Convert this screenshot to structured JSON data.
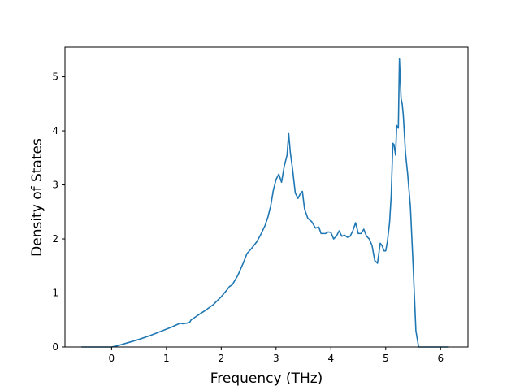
{
  "chart_data": {
    "type": "line",
    "title": "",
    "xlabel": "Frequency (THz)",
    "ylabel": "Density of States",
    "xlim": [
      -0.85,
      6.5
    ],
    "ylim": [
      0,
      5.55
    ],
    "grid": false,
    "legend": "none",
    "x_ticks": [
      0,
      1,
      2,
      3,
      4,
      5,
      6
    ],
    "y_ticks": [
      0,
      1,
      2,
      3,
      4,
      5
    ],
    "series": [
      {
        "color": "#1f77b4",
        "x": [
          -0.55,
          -0.3,
          0.0,
          0.1,
          0.3,
          0.5,
          0.7,
          0.9,
          1.1,
          1.25,
          1.3,
          1.42,
          1.45,
          1.55,
          1.7,
          1.85,
          2.0,
          2.1,
          2.15,
          2.2,
          2.3,
          2.4,
          2.47,
          2.55,
          2.65,
          2.72,
          2.8,
          2.85,
          2.9,
          2.95,
          3.0,
          3.05,
          3.1,
          3.15,
          3.2,
          3.23,
          3.26,
          3.3,
          3.35,
          3.4,
          3.45,
          3.48,
          3.52,
          3.58,
          3.65,
          3.72,
          3.78,
          3.82,
          3.9,
          3.95,
          4.0,
          4.05,
          4.1,
          4.15,
          4.2,
          4.25,
          4.3,
          4.35,
          4.4,
          4.45,
          4.5,
          4.55,
          4.6,
          4.65,
          4.7,
          4.75,
          4.8,
          4.85,
          4.9,
          4.93,
          4.97,
          5.0,
          5.03,
          5.07,
          5.1,
          5.13,
          5.15,
          5.18,
          5.2,
          5.23,
          5.25,
          5.28,
          5.3,
          5.32,
          5.36,
          5.4,
          5.45,
          5.5,
          5.55,
          5.6,
          5.65,
          5.7,
          5.8,
          6.0,
          6.15
        ],
        "y": [
          0,
          0,
          0,
          0.02,
          0.08,
          0.14,
          0.21,
          0.29,
          0.37,
          0.44,
          0.43,
          0.45,
          0.5,
          0.57,
          0.67,
          0.78,
          0.93,
          1.05,
          1.12,
          1.15,
          1.32,
          1.55,
          1.73,
          1.82,
          1.95,
          2.08,
          2.25,
          2.4,
          2.6,
          2.9,
          3.1,
          3.2,
          3.05,
          3.35,
          3.55,
          3.95,
          3.6,
          3.3,
          2.85,
          2.75,
          2.85,
          2.88,
          2.55,
          2.38,
          2.32,
          2.2,
          2.22,
          2.1,
          2.1,
          2.13,
          2.12,
          2.0,
          2.05,
          2.15,
          2.05,
          2.07,
          2.03,
          2.05,
          2.15,
          2.3,
          2.1,
          2.1,
          2.18,
          2.05,
          2.0,
          1.88,
          1.6,
          1.55,
          1.92,
          1.88,
          1.78,
          1.78,
          1.95,
          2.3,
          2.8,
          3.77,
          3.75,
          3.55,
          4.1,
          4.05,
          5.33,
          4.6,
          4.5,
          4.3,
          3.6,
          3.2,
          2.6,
          1.5,
          0.3,
          0,
          0,
          0,
          0,
          0,
          0
        ]
      }
    ]
  }
}
